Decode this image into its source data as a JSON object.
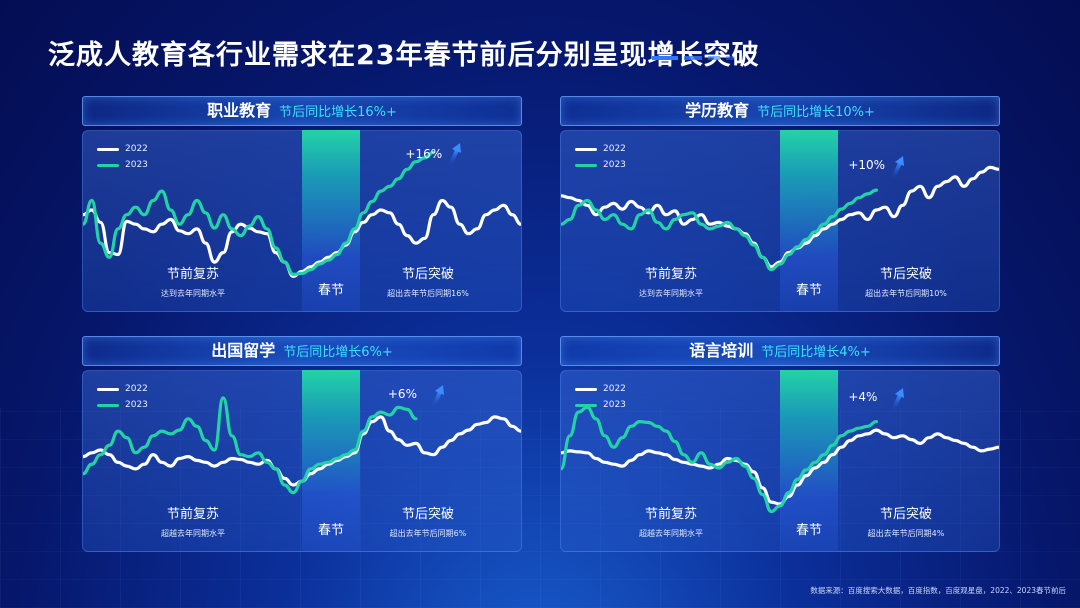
{
  "title": "泛成人教育各行业需求在23年春节前后分别呈现增长突破",
  "source": "数据来源：百度搜索大数据，百度指数，百度观星盘，2022、2023春节前后",
  "colors": {
    "y2022": "#ffffff",
    "y2023": "#23d3a6",
    "growth_text": "#3ae0ff"
  },
  "chart_data": [
    {
      "type": "line",
      "title": "职业教育",
      "subtitle": "节后同比增长16%+",
      "legend": [
        "2022",
        "2023"
      ],
      "spring_label": "春节",
      "pre_label": "节前复苏",
      "pre_sub": "达到去年同期水平",
      "post_label": "节后突破",
      "post_sub": "超出去年节后同期16%",
      "growth_tag": "+16%",
      "x": [
        0,
        1,
        2,
        3,
        4,
        5,
        6,
        7,
        8,
        9,
        10,
        11,
        12,
        13,
        14,
        15,
        16,
        17,
        18,
        19,
        20,
        21,
        22,
        23,
        24,
        25,
        26,
        27,
        28,
        29,
        30,
        31,
        32,
        33,
        34,
        35,
        36,
        37,
        38,
        39,
        40,
        41,
        42,
        43,
        44,
        45,
        46,
        47,
        48,
        49,
        50
      ],
      "series": [
        {
          "name": "2022",
          "values": [
            70,
            75,
            62,
            30,
            28,
            63,
            60,
            55,
            52,
            60,
            65,
            53,
            50,
            55,
            40,
            20,
            30,
            52,
            60,
            56,
            52,
            50,
            30,
            20,
            5,
            10,
            15,
            20,
            25,
            30,
            38,
            52,
            62,
            70,
            75,
            72,
            60,
            48,
            40,
            45,
            70,
            85,
            78,
            60,
            50,
            55,
            70,
            75,
            80,
            70,
            60
          ]
        },
        {
          "name": "2023",
          "values": [
            60,
            85,
            40,
            25,
            55,
            70,
            78,
            70,
            85,
            95,
            75,
            60,
            70,
            85,
            72,
            56,
            70,
            55,
            48,
            58,
            68,
            55,
            35,
            20,
            7,
            8,
            12,
            18,
            22,
            28,
            40,
            55,
            72,
            84,
            95,
            100,
            108,
            118,
            126,
            130,
            136,
            null,
            null,
            null,
            null,
            null,
            null,
            null,
            null,
            null,
            null
          ]
        }
      ],
      "ylim": [
        0,
        150
      ]
    },
    {
      "type": "line",
      "title": "学历教育",
      "subtitle": "节后同比增长10%+",
      "legend": [
        "2022",
        "2023"
      ],
      "spring_label": "春节",
      "pre_label": "节前复苏",
      "pre_sub": "达到去年同期水平",
      "post_label": "节后突破",
      "post_sub": "超出去年节后同期10%",
      "growth_tag": "+10%",
      "x": [
        0,
        1,
        2,
        3,
        4,
        5,
        6,
        7,
        8,
        9,
        10,
        11,
        12,
        13,
        14,
        15,
        16,
        17,
        18,
        19,
        20,
        21,
        22,
        23,
        24,
        25,
        26,
        27,
        28,
        29,
        30,
        31,
        32,
        33,
        34,
        35,
        36,
        37,
        38,
        39,
        40,
        41,
        42,
        43,
        44,
        45,
        46,
        47,
        48,
        49,
        50
      ],
      "series": [
        {
          "name": "2022",
          "values": [
            90,
            88,
            85,
            80,
            70,
            78,
            82,
            76,
            84,
            78,
            72,
            80,
            70,
            74,
            60,
            65,
            70,
            60,
            62,
            58,
            55,
            50,
            40,
            25,
            15,
            20,
            30,
            35,
            40,
            48,
            55,
            60,
            65,
            70,
            72,
            65,
            75,
            78,
            68,
            80,
            95,
            100,
            88,
            100,
            105,
            110,
            100,
            108,
            115,
            120,
            118
          ]
        },
        {
          "name": "2023",
          "values": [
            60,
            65,
            80,
            85,
            75,
            65,
            70,
            60,
            55,
            70,
            75,
            62,
            55,
            65,
            70,
            72,
            60,
            55,
            58,
            62,
            55,
            48,
            38,
            25,
            12,
            18,
            28,
            36,
            44,
            52,
            60,
            68,
            76,
            82,
            88,
            92,
            96,
            null,
            null,
            null,
            null,
            null,
            null,
            null,
            null,
            null,
            null,
            null,
            null,
            null,
            null
          ]
        }
      ],
      "ylim": [
        0,
        150
      ]
    },
    {
      "type": "line",
      "title": "出国留学",
      "subtitle": "节后同比增长6%+",
      "legend": [
        "2022",
        "2023"
      ],
      "spring_label": "春节",
      "pre_label": "节前复苏",
      "pre_sub": "超越去年同期水平",
      "post_label": "节后突破",
      "post_sub": "超出去年节后同期6%",
      "growth_tag": "+6%",
      "x": [
        0,
        1,
        2,
        3,
        4,
        5,
        6,
        7,
        8,
        9,
        10,
        11,
        12,
        13,
        14,
        15,
        16,
        17,
        18,
        19,
        20,
        21,
        22,
        23,
        24,
        25,
        26,
        27,
        28,
        29,
        30,
        31,
        32,
        33,
        34,
        35,
        36,
        37,
        38,
        39,
        40,
        41,
        42,
        43,
        44,
        45,
        46,
        47,
        48,
        49,
        50
      ],
      "series": [
        {
          "name": "2022",
          "values": [
            68,
            72,
            75,
            70,
            62,
            58,
            55,
            60,
            70,
            62,
            58,
            66,
            68,
            64,
            62,
            58,
            62,
            66,
            65,
            62,
            60,
            64,
            55,
            45,
            38,
            42,
            50,
            55,
            60,
            64,
            68,
            72,
            92,
            105,
            110,
            95,
            86,
            80,
            82,
            72,
            70,
            78,
            85,
            92,
            96,
            102,
            104,
            110,
            108,
            100,
            95
          ]
        },
        {
          "name": "2023",
          "values": [
            50,
            60,
            70,
            80,
            95,
            88,
            72,
            78,
            90,
            95,
            92,
            96,
            108,
            100,
            85,
            75,
            130,
            90,
            70,
            68,
            72,
            62,
            55,
            38,
            30,
            42,
            55,
            60,
            62,
            66,
            70,
            75,
            95,
            110,
            115,
            112,
            120,
            118,
            108,
            null,
            null,
            null,
            null,
            null,
            null,
            null,
            null,
            null,
            null,
            null,
            null
          ]
        }
      ],
      "ylim": [
        0,
        150
      ]
    },
    {
      "type": "line",
      "title": "语言培训",
      "subtitle": "节后同比增长4%+",
      "legend": [
        "2022",
        "2023"
      ],
      "spring_label": "春节",
      "pre_label": "节前复苏",
      "pre_sub": "超越去年同期水平",
      "post_label": "节后突破",
      "post_sub": "超出去年节后同期4%",
      "growth_tag": "+4%",
      "x": [
        0,
        1,
        2,
        3,
        4,
        5,
        6,
        7,
        8,
        9,
        10,
        11,
        12,
        13,
        14,
        15,
        16,
        17,
        18,
        19,
        20,
        21,
        22,
        23,
        24,
        25,
        26,
        27,
        28,
        29,
        30,
        31,
        32,
        33,
        34,
        35,
        36,
        37,
        38,
        39,
        40,
        41,
        42,
        43,
        44,
        45,
        46,
        47,
        48,
        49,
        50
      ],
      "series": [
        {
          "name": "2022",
          "values": [
            72,
            74,
            73,
            72,
            66,
            62,
            60,
            58,
            64,
            70,
            74,
            72,
            70,
            65,
            62,
            60,
            58,
            56,
            60,
            66,
            64,
            60,
            52,
            35,
            20,
            18,
            26,
            38,
            48,
            56,
            62,
            70,
            78,
            85,
            90,
            92,
            96,
            92,
            88,
            90,
            86,
            82,
            88,
            92,
            88,
            85,
            82,
            78,
            74,
            76,
            78
          ]
        },
        {
          "name": "2023",
          "values": [
            55,
            90,
            115,
            120,
            108,
            90,
            78,
            88,
            100,
            105,
            104,
            100,
            95,
            84,
            70,
            62,
            72,
            60,
            56,
            62,
            66,
            58,
            45,
            28,
            10,
            16,
            30,
            44,
            54,
            62,
            70,
            80,
            90,
            95,
            98,
            100,
            105,
            null,
            null,
            null,
            null,
            null,
            null,
            null,
            null,
            null,
            null,
            null,
            null,
            null,
            null
          ]
        }
      ],
      "ylim": [
        0,
        150
      ]
    }
  ]
}
